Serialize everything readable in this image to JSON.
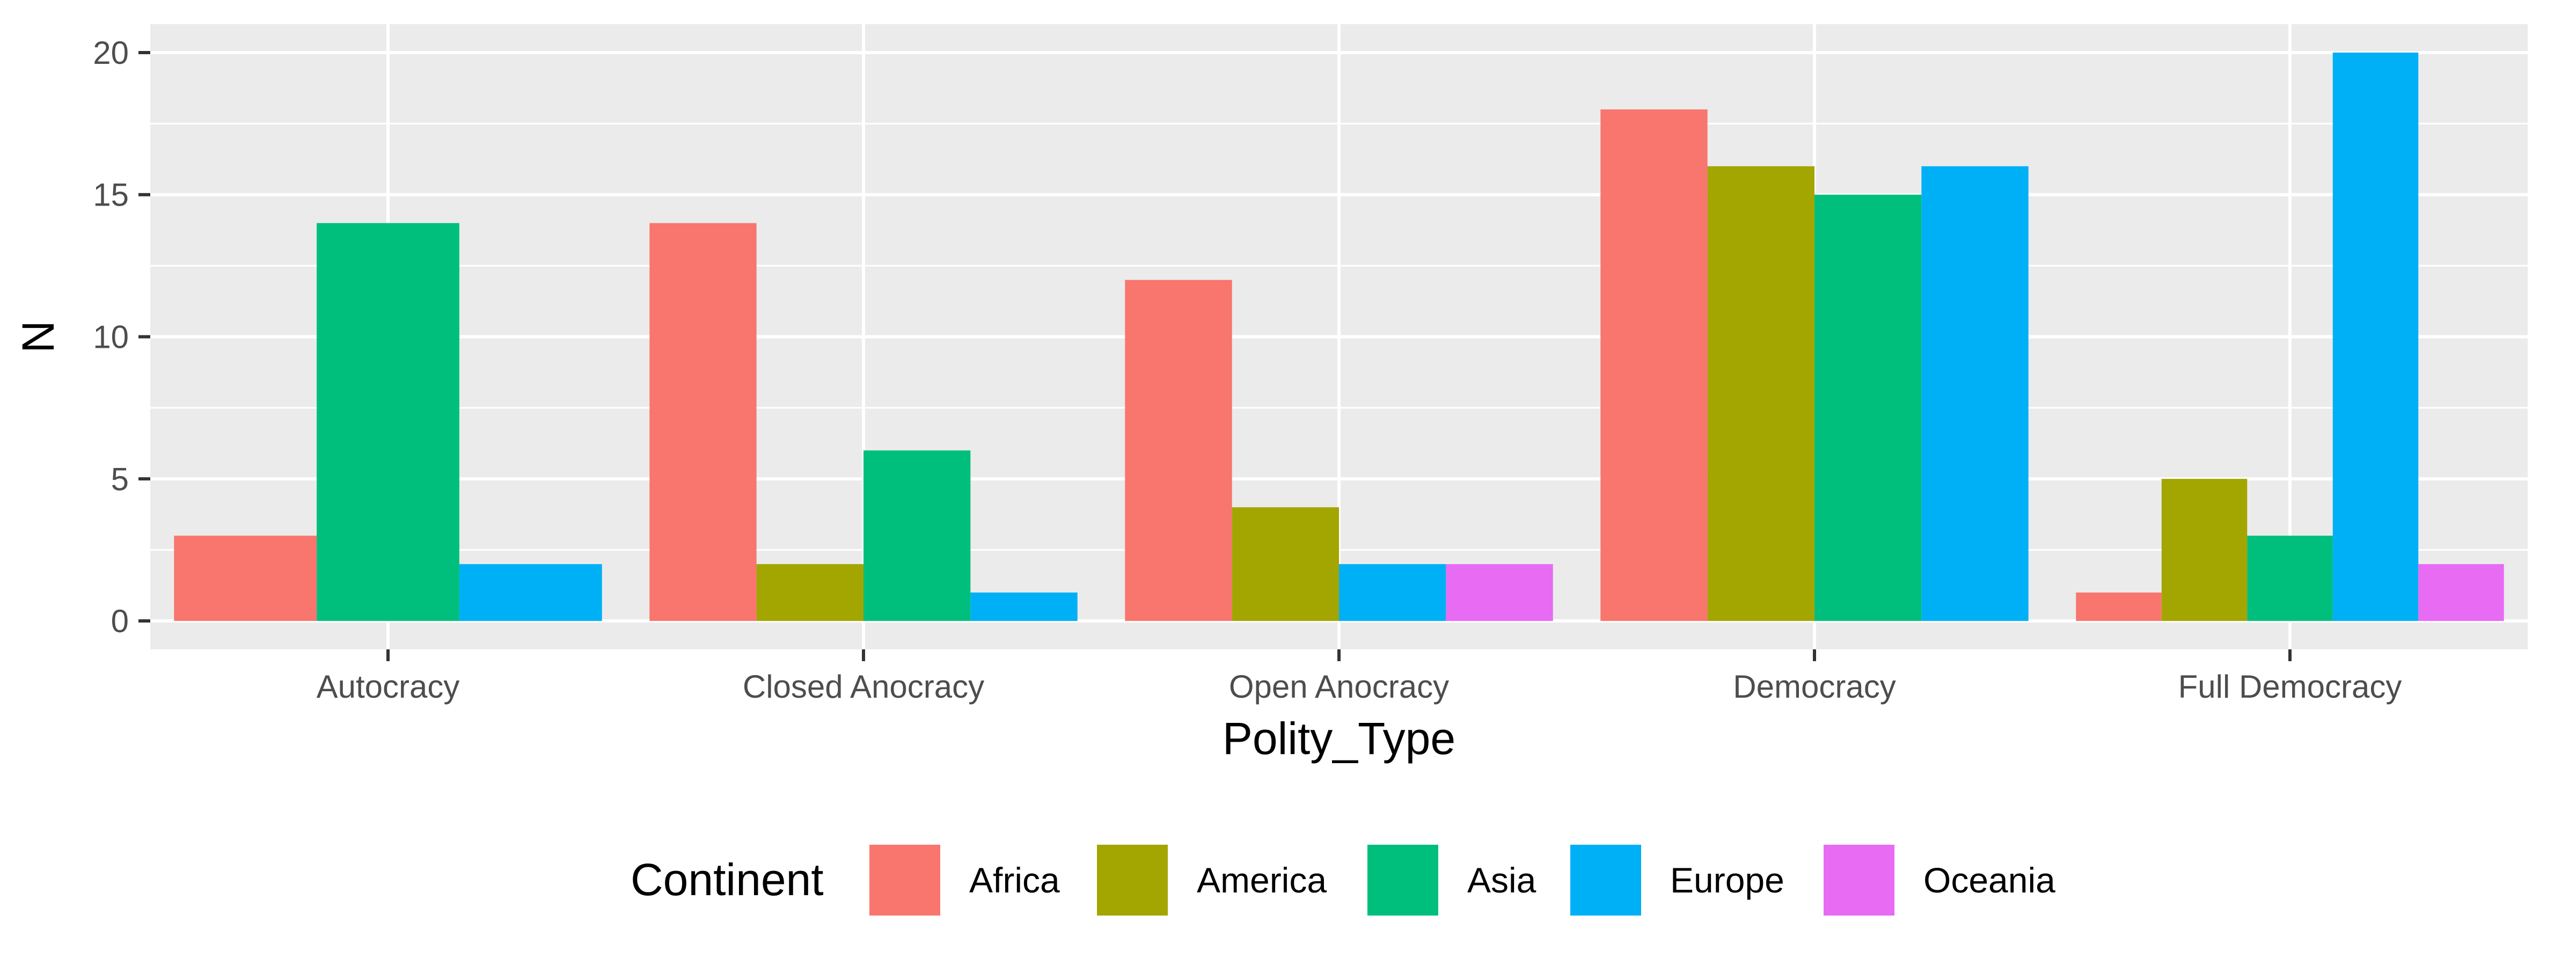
{
  "chart_data": {
    "type": "bar",
    "grouped": true,
    "xlabel": "Polity_Type",
    "ylabel": "N",
    "ylim": [
      -1,
      21
    ],
    "yticks": [
      0,
      5,
      10,
      15,
      20
    ],
    "grid": true,
    "legend_position": "bottom",
    "legend_title": "Continent",
    "categories": [
      "Autocracy",
      "Closed Anocracy",
      "Open Anocracy",
      "Democracy",
      "Full Democracy"
    ],
    "series": [
      {
        "name": "Africa",
        "color": "#F8766D",
        "values": [
          3,
          14,
          12,
          18,
          1
        ]
      },
      {
        "name": "America",
        "color": "#A3A500",
        "values": [
          null,
          2,
          4,
          16,
          5
        ]
      },
      {
        "name": "Asia",
        "color": "#00BF7D",
        "values": [
          14,
          6,
          null,
          15,
          3
        ]
      },
      {
        "name": "Europe",
        "color": "#00B0F6",
        "values": [
          2,
          1,
          2,
          16,
          20
        ]
      },
      {
        "name": "Oceania",
        "color": "#E76BF3",
        "values": [
          null,
          null,
          2,
          null,
          2
        ]
      }
    ],
    "panel_background": "#EBEBEB",
    "gridline_color": "#FFFFFF"
  }
}
